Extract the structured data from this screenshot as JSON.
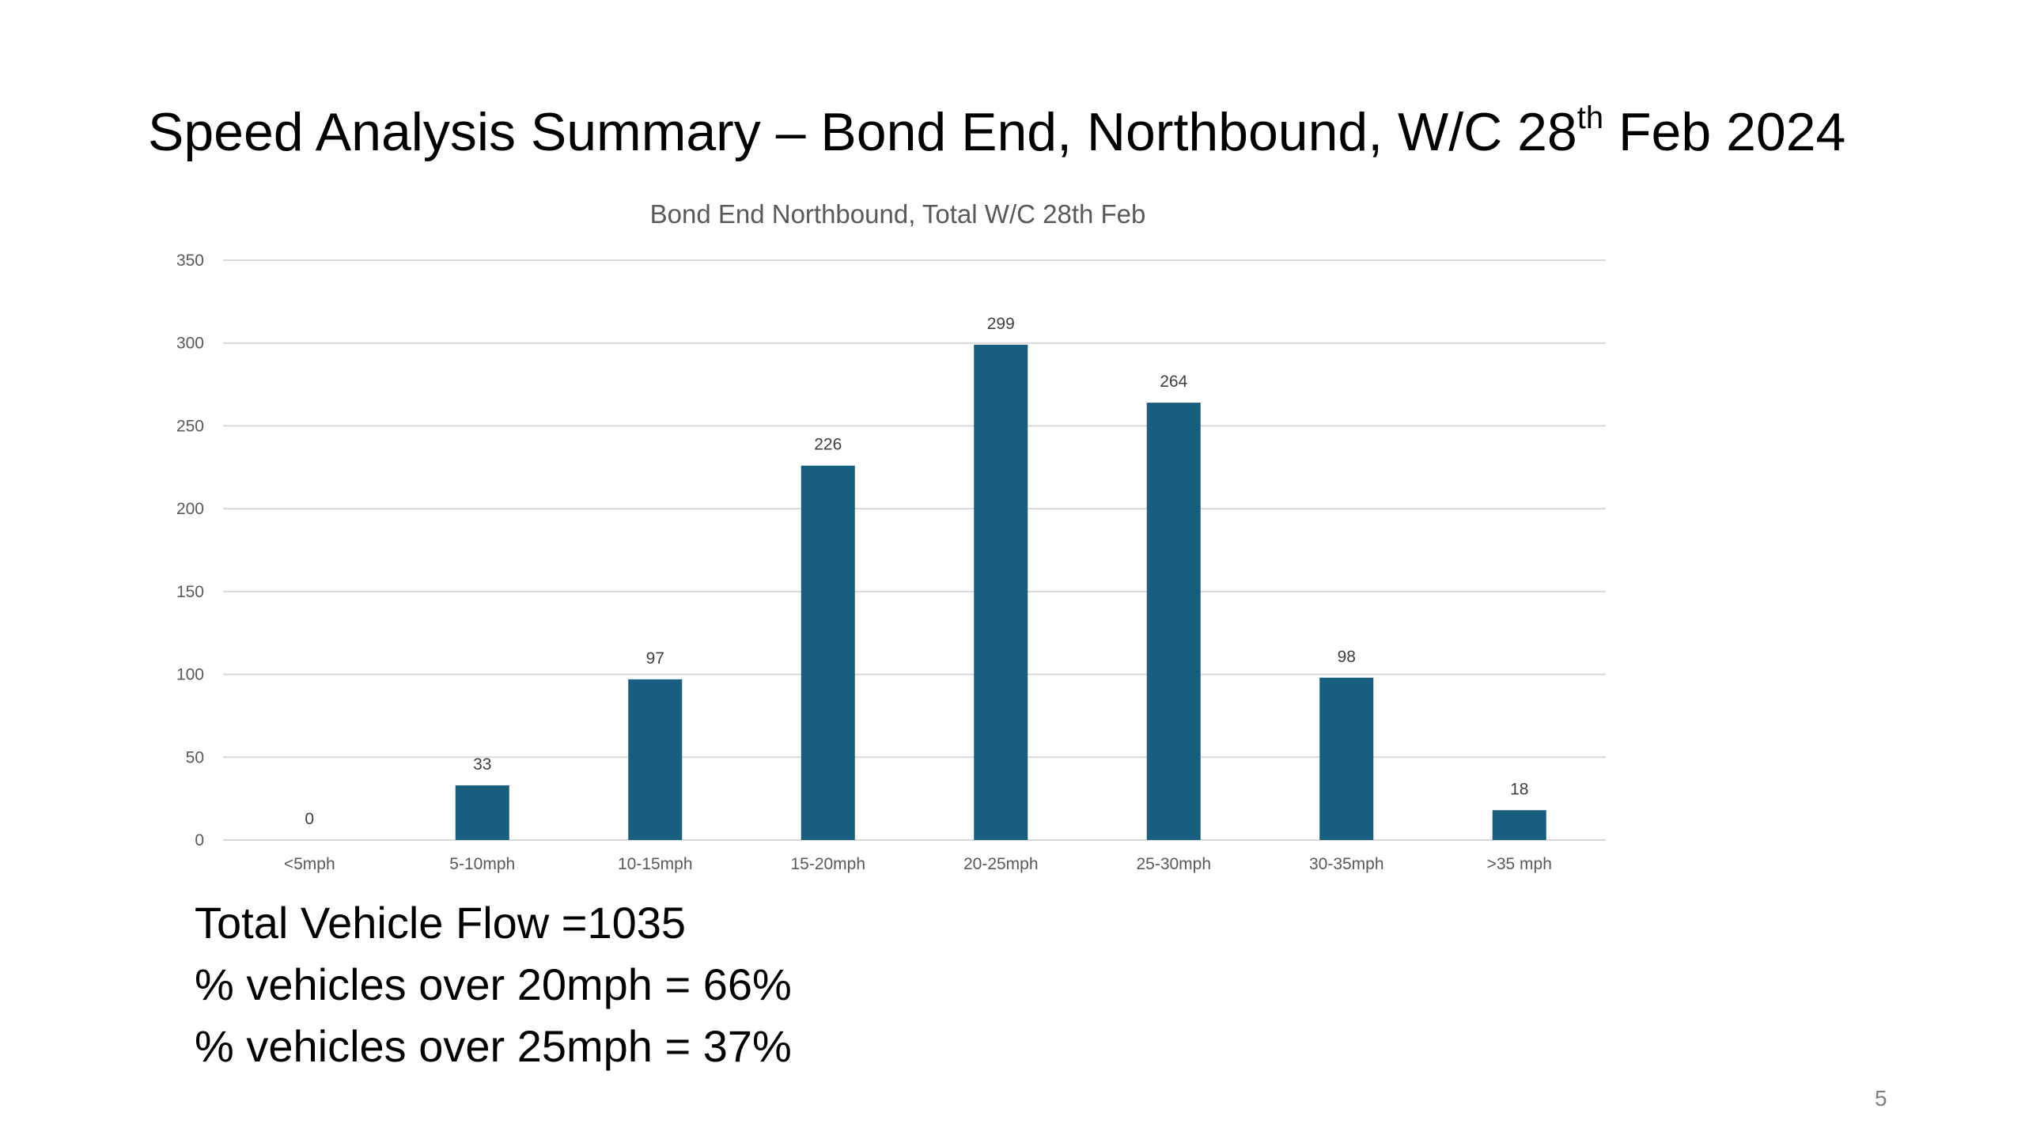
{
  "slide": {
    "title_main": "Speed Analysis Summary – Bond End, Northbound, W/C 28",
    "title_sup": "th",
    "title_tail": " Feb 2024",
    "summary_lines": [
      "Total Vehicle Flow =1035",
      "% vehicles over 20mph = 66%",
      "% vehicles over 25mph = 37%"
    ],
    "page_number": "5"
  },
  "chart_data": {
    "type": "bar",
    "title": "Bond End Northbound, Total W/C 28th Feb",
    "categories": [
      "<5mph",
      "5-10mph",
      "10-15mph",
      "15-20mph",
      "20-25mph",
      "25-30mph",
      "30-35mph",
      ">35 mph"
    ],
    "values": [
      0,
      33,
      97,
      226,
      299,
      264,
      98,
      18
    ],
    "ylim": [
      0,
      350
    ],
    "yticks": [
      0,
      50,
      100,
      150,
      200,
      250,
      300,
      350
    ],
    "grid": true,
    "data_labels": true,
    "bar_color": "#175e7f",
    "grid_color": "#d9d9d9",
    "text_color": "#595959"
  }
}
